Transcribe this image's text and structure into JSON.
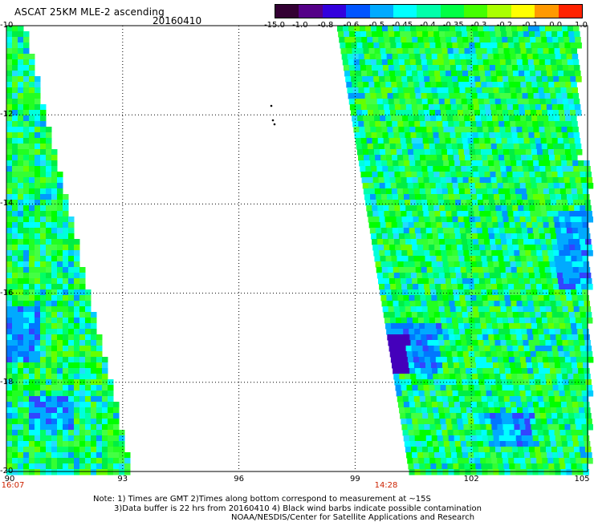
{
  "header": {
    "title": "ASCAT 25KM MLE-2 ascending",
    "date": "20160410"
  },
  "colorbar": {
    "labels": [
      "-15.0",
      "-1.0",
      "-0.8",
      "-0.6",
      "-0.5",
      "-0.45",
      "-0.4",
      "-0.35",
      "-0.3",
      "-0.2",
      "-0.1",
      "0.0",
      "1.0"
    ],
    "colors": [
      "#330033",
      "#550088",
      "#3300dd",
      "#0055ff",
      "#00aaff",
      "#00ffff",
      "#00ffaa",
      "#00ff44",
      "#44ff00",
      "#aaff00",
      "#ffff00",
      "#ff9900",
      "#ff2200"
    ]
  },
  "map": {
    "lat_labels": [
      "-10",
      "-12",
      "-14",
      "-16",
      "-18",
      "-20"
    ],
    "lon_labels": [
      "90",
      "93",
      "96",
      "99",
      "102",
      "105"
    ],
    "lat_range": [
      -20,
      -10
    ],
    "lon_range": [
      90,
      105
    ],
    "time_labels": [
      {
        "lon": 90,
        "text": "16:07"
      },
      {
        "lon": 99.8,
        "text": "14:28"
      }
    ]
  },
  "notes": {
    "line1": "Note: 1) Times are GMT 2)Times along bottom correspond to measurement at ~15S",
    "line2": "3)Data buffer is 22 hrs from 20160410 4) Black wind barbs indicate possible contamination",
    "line3": "NOAA/NESDIS/Center for Satellite Applications and Research"
  }
}
